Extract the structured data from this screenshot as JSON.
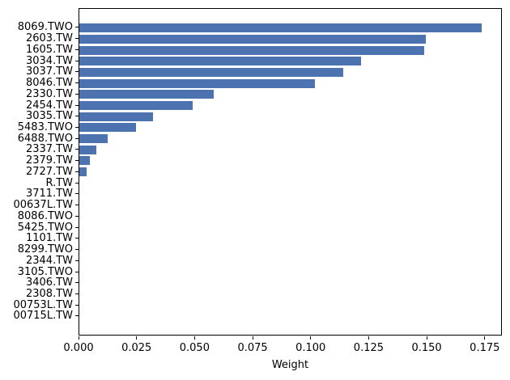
{
  "colors": {
    "bar": "#4C72B0",
    "spine": "#000000",
    "text": "#000000",
    "background": "#ffffff"
  },
  "chart_data": {
    "type": "bar",
    "orientation": "horizontal",
    "title": "",
    "xlabel": "Weight",
    "ylabel": "",
    "grid": false,
    "legend": null,
    "xlim": [
      0,
      0.1824
    ],
    "x_tick_values": [
      0.0,
      0.025,
      0.05,
      0.075,
      0.1,
      0.125,
      0.15,
      0.175
    ],
    "x_tick_labels": [
      "0.000",
      "0.025",
      "0.050",
      "0.075",
      "0.100",
      "0.125",
      "0.150",
      "0.175"
    ],
    "categories": [
      "8069.TWO",
      "2603.TW",
      "1605.TW",
      "3034.TW",
      "3037.TW",
      "8046.TW",
      "2330.TW",
      "2454.TW",
      "3035.TW",
      "5483.TWO",
      "6488.TWO",
      "2337.TW",
      "2379.TW",
      "2727.TW",
      "R.TW",
      "3711.TW",
      "00637L.TW",
      "8086.TWO",
      "5425.TWO",
      "1101.TW",
      "8299.TWO",
      "2344.TW",
      "3105.TWO",
      "3406.TW",
      "2308.TW",
      "00753L.TW",
      "00715L.TW"
    ],
    "values": [
      0.174,
      0.15,
      0.149,
      0.122,
      0.114,
      0.102,
      0.058,
      0.049,
      0.032,
      0.0245,
      0.0121,
      0.0072,
      0.0044,
      0.003,
      0.0,
      0.0,
      0.0,
      0.0,
      0.0,
      0.0,
      0.0,
      0.0,
      0.0,
      0.0,
      0.0,
      0.0,
      0.0
    ]
  }
}
